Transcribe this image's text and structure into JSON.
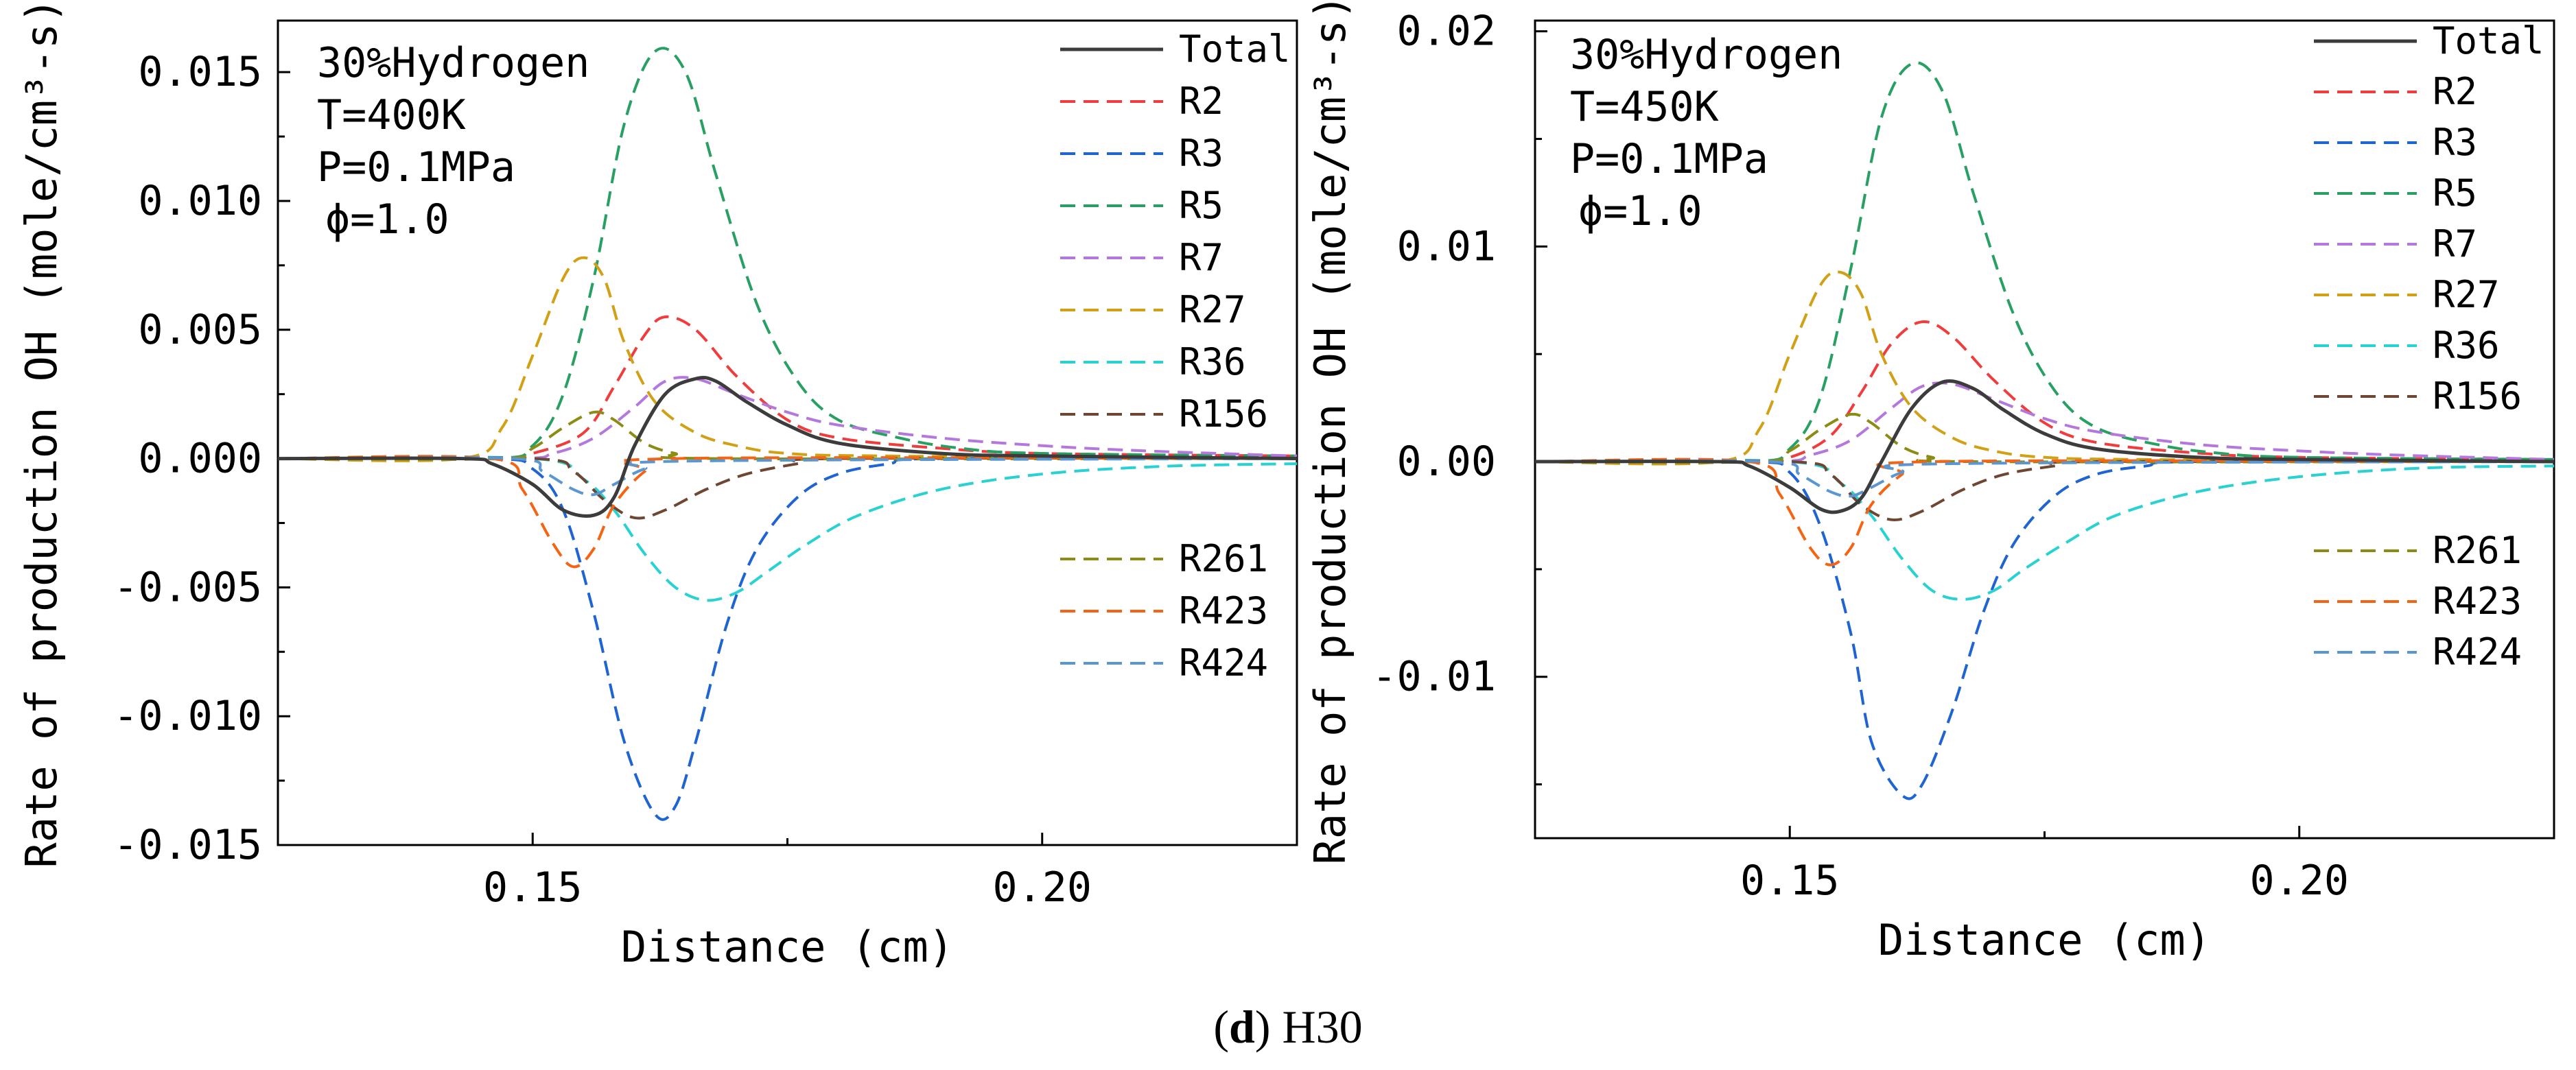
{
  "caption": {
    "panel": "d",
    "text": "H30"
  },
  "colors": {
    "Total": "#3c3c3c",
    "R2": "#f03c3c",
    "R3": "#1e64d2",
    "R5": "#28a064",
    "R7": "#b478dc",
    "R27": "#d2a014",
    "R36": "#28d2d2",
    "R156": "#6e4632",
    "R261": "#8c8c14",
    "R423": "#f56414",
    "R424": "#5a96d2"
  },
  "chart_data": [
    {
      "type": "line",
      "title": "",
      "xlabel": "Distance (cm)",
      "ylabel": "Rate of production OH (mole/cm³-s)",
      "xlim": [
        0.125,
        0.225
      ],
      "ylim": [
        -0.015,
        0.017
      ],
      "xticks": [
        0.15,
        0.2
      ],
      "xtick_labels": [
        "0.15",
        "0.20"
      ],
      "yticks": [
        0.015,
        0.01,
        0.005,
        0.0,
        -0.005,
        -0.01,
        -0.015
      ],
      "ytick_labels": [
        "0.015",
        "0.010",
        "0.005",
        "0.000",
        "-0.005",
        "-0.010",
        "-0.015"
      ],
      "annotations": [
        "30%Hydrogen",
        "T=400K",
        "P=0.1MPa",
        "ϕ=1.0"
      ],
      "legend_top": [
        "Total",
        "R2",
        "R3",
        "R5",
        "R7",
        "R27",
        "R36",
        "R156"
      ],
      "legend_bottom": [
        "R261",
        "R423",
        "R424"
      ],
      "series": [
        {
          "name": "Total",
          "style": "solid",
          "x": [
            0.125,
            0.143,
            0.146,
            0.15,
            0.153,
            0.156,
            0.158,
            0.16,
            0.163,
            0.166,
            0.168,
            0.171,
            0.175,
            0.18,
            0.19,
            0.2,
            0.225
          ],
          "y": [
            0,
            0,
            -0.0002,
            -0.001,
            -0.002,
            -0.0022,
            -0.0015,
            0.0005,
            0.0025,
            0.0031,
            0.003,
            0.0022,
            0.0013,
            0.0006,
            0.0002,
            0.0001,
            0
          ]
        },
        {
          "name": "R2",
          "style": "dashed",
          "x": [
            0.125,
            0.146,
            0.15,
            0.155,
            0.158,
            0.161,
            0.163,
            0.166,
            0.17,
            0.175,
            0.18,
            0.19,
            0.2,
            0.225
          ],
          "y": [
            0,
            0,
            0.0002,
            0.001,
            0.0028,
            0.0048,
            0.0055,
            0.005,
            0.0032,
            0.0015,
            0.0008,
            0.0004,
            0.0002,
            0.0001
          ]
        },
        {
          "name": "R3",
          "style": "dashed",
          "x": [
            0.125,
            0.146,
            0.15,
            0.153,
            0.156,
            0.159,
            0.162,
            0.164,
            0.166,
            0.169,
            0.172,
            0.176,
            0.18,
            0.185,
            0.19,
            0.225
          ],
          "y": [
            0,
            0,
            -0.0004,
            -0.002,
            -0.006,
            -0.011,
            -0.0138,
            -0.0135,
            -0.011,
            -0.0065,
            -0.0035,
            -0.0015,
            -0.0006,
            -0.0002,
            0,
            0
          ]
        },
        {
          "name": "R5",
          "style": "dashed",
          "x": [
            0.125,
            0.146,
            0.15,
            0.153,
            0.156,
            0.159,
            0.162,
            0.165,
            0.168,
            0.172,
            0.176,
            0.18,
            0.186,
            0.192,
            0.2,
            0.225
          ],
          "y": [
            0,
            0,
            0.0005,
            0.0025,
            0.007,
            0.013,
            0.0158,
            0.015,
            0.011,
            0.006,
            0.003,
            0.0015,
            0.0008,
            0.0004,
            0.0002,
            0.0001
          ]
        },
        {
          "name": "R7",
          "style": "dashed",
          "x": [
            0.125,
            0.148,
            0.152,
            0.156,
            0.16,
            0.163,
            0.166,
            0.17,
            0.175,
            0.18,
            0.19,
            0.2,
            0.21,
            0.225
          ],
          "y": [
            0,
            0,
            0.0002,
            0.0008,
            0.002,
            0.003,
            0.0031,
            0.0025,
            0.0018,
            0.0013,
            0.0008,
            0.0005,
            0.0003,
            0.0001
          ]
        },
        {
          "name": "R27",
          "style": "dashed",
          "x": [
            0.125,
            0.143,
            0.147,
            0.15,
            0.153,
            0.155,
            0.157,
            0.159,
            0.162,
            0.166,
            0.17,
            0.175,
            0.185,
            0.225
          ],
          "y": [
            0,
            0,
            0.0012,
            0.004,
            0.007,
            0.0078,
            0.007,
            0.0045,
            0.0022,
            0.001,
            0.0005,
            0.0002,
            0.0001,
            0
          ]
        },
        {
          "name": "R36",
          "style": "dashed",
          "x": [
            0.125,
            0.15,
            0.155,
            0.158,
            0.161,
            0.164,
            0.167,
            0.17,
            0.173,
            0.177,
            0.182,
            0.19,
            0.2,
            0.212,
            0.225
          ],
          "y": [
            0,
            0,
            -0.0008,
            -0.002,
            -0.0037,
            -0.005,
            -0.0055,
            -0.0052,
            -0.0044,
            -0.0033,
            -0.0022,
            -0.0012,
            -0.0006,
            -0.0003,
            -0.0002
          ]
        },
        {
          "name": "R156",
          "style": "dashed",
          "x": [
            0.125,
            0.15,
            0.154,
            0.157,
            0.16,
            0.163,
            0.167,
            0.171,
            0.176,
            0.18,
            0.225
          ],
          "y": [
            0,
            0,
            -0.0005,
            -0.0016,
            -0.0023,
            -0.002,
            -0.0012,
            -0.0006,
            -0.0002,
            0,
            0
          ]
        },
        {
          "name": "R261",
          "style": "dashed",
          "x": [
            0.125,
            0.147,
            0.15,
            0.153,
            0.156,
            0.158,
            0.161,
            0.164,
            0.168,
            0.225
          ],
          "y": [
            0,
            0,
            0.0004,
            0.0012,
            0.0018,
            0.0015,
            0.0006,
            0.0002,
            0,
            0
          ]
        },
        {
          "name": "R423",
          "style": "dashed",
          "x": [
            0.125,
            0.146,
            0.149,
            0.152,
            0.154,
            0.156,
            0.158,
            0.161,
            0.164,
            0.225
          ],
          "y": [
            0,
            0,
            -0.0012,
            -0.0033,
            -0.0042,
            -0.0035,
            -0.0018,
            -0.0005,
            0,
            0
          ]
        },
        {
          "name": "R424",
          "style": "dashed",
          "x": [
            0.125,
            0.148,
            0.151,
            0.154,
            0.156,
            0.158,
            0.161,
            0.165,
            0.225
          ],
          "y": [
            0,
            0,
            -0.0005,
            -0.0012,
            -0.0014,
            -0.001,
            -0.0004,
            -0.0001,
            0
          ]
        }
      ]
    },
    {
      "type": "line",
      "title": "",
      "xlabel": "Distance (cm)",
      "ylabel": "Rate of production OH (mole/cm³-s)",
      "xlim": [
        0.125,
        0.225
      ],
      "ylim": [
        -0.0175,
        0.0205
      ],
      "xticks": [
        0.15,
        0.2
      ],
      "xtick_labels": [
        "0.15",
        "0.20"
      ],
      "yticks": [
        0.02,
        0.01,
        0.0,
        -0.01
      ],
      "ytick_labels": [
        "0.02",
        "0.01",
        "0.00",
        "-0.01"
      ],
      "annotations": [
        "30%Hydrogen",
        "T=450K",
        "P=0.1MPa",
        "ϕ=1.0"
      ],
      "legend_top": [
        "Total",
        "R2",
        "R3",
        "R5",
        "R7",
        "R27",
        "R36",
        "R156"
      ],
      "legend_bottom": [
        "R261",
        "R423",
        "R424"
      ],
      "series": [
        {
          "name": "Total",
          "style": "solid",
          "x": [
            0.125,
            0.143,
            0.146,
            0.15,
            0.153,
            0.155,
            0.157,
            0.159,
            0.162,
            0.165,
            0.168,
            0.171,
            0.175,
            0.18,
            0.19,
            0.2,
            0.225
          ],
          "y": [
            0,
            0,
            -0.0002,
            -0.0012,
            -0.0022,
            -0.0023,
            -0.0017,
            0.0,
            0.0025,
            0.0037,
            0.0034,
            0.0024,
            0.0013,
            0.0006,
            0.0002,
            0.0001,
            0
          ]
        },
        {
          "name": "R2",
          "style": "dashed",
          "x": [
            0.125,
            0.146,
            0.15,
            0.154,
            0.157,
            0.16,
            0.163,
            0.166,
            0.17,
            0.175,
            0.18,
            0.19,
            0.2,
            0.225
          ],
          "y": [
            0,
            0,
            0.0002,
            0.0012,
            0.0032,
            0.0055,
            0.0065,
            0.0058,
            0.0038,
            0.0018,
            0.0009,
            0.0004,
            0.0002,
            0.0001
          ]
        },
        {
          "name": "R3",
          "style": "dashed",
          "x": [
            0.125,
            0.146,
            0.15,
            0.153,
            0.156,
            0.158,
            0.161,
            0.163,
            0.166,
            0.169,
            0.172,
            0.176,
            0.18,
            0.185,
            0.19,
            0.225
          ],
          "y": [
            0,
            0,
            -0.0005,
            -0.003,
            -0.008,
            -0.013,
            -0.0155,
            -0.015,
            -0.0115,
            -0.007,
            -0.0038,
            -0.0016,
            -0.0006,
            -0.0002,
            0,
            0
          ]
        },
        {
          "name": "R5",
          "style": "dashed",
          "x": [
            0.125,
            0.146,
            0.15,
            0.153,
            0.156,
            0.159,
            0.162,
            0.165,
            0.168,
            0.172,
            0.176,
            0.18,
            0.186,
            0.192,
            0.2,
            0.225
          ],
          "y": [
            0,
            0,
            0.0006,
            0.003,
            0.009,
            0.016,
            0.0185,
            0.0172,
            0.0125,
            0.0068,
            0.0033,
            0.0016,
            0.0008,
            0.0004,
            0.0002,
            0.0001
          ]
        },
        {
          "name": "R7",
          "style": "dashed",
          "x": [
            0.125,
            0.148,
            0.152,
            0.156,
            0.16,
            0.163,
            0.166,
            0.17,
            0.175,
            0.18,
            0.19,
            0.2,
            0.21,
            0.225
          ],
          "y": [
            0,
            0,
            0.0003,
            0.001,
            0.0025,
            0.0035,
            0.0036,
            0.0029,
            0.002,
            0.0014,
            0.0008,
            0.0005,
            0.0003,
            0.0001
          ]
        },
        {
          "name": "R27",
          "style": "dashed",
          "x": [
            0.125,
            0.143,
            0.147,
            0.15,
            0.153,
            0.155,
            0.157,
            0.159,
            0.162,
            0.166,
            0.17,
            0.175,
            0.185,
            0.225
          ],
          "y": [
            0,
            0,
            0.0015,
            0.005,
            0.0082,
            0.0088,
            0.0078,
            0.005,
            0.0025,
            0.0011,
            0.0005,
            0.0002,
            0.0001,
            0
          ]
        },
        {
          "name": "R36",
          "style": "dashed",
          "x": [
            0.125,
            0.15,
            0.155,
            0.158,
            0.161,
            0.164,
            0.167,
            0.17,
            0.173,
            0.177,
            0.182,
            0.19,
            0.2,
            0.212,
            0.225
          ],
          "y": [
            0,
            0,
            -0.001,
            -0.0025,
            -0.0045,
            -0.006,
            -0.0064,
            -0.006,
            -0.005,
            -0.0038,
            -0.0025,
            -0.0014,
            -0.0007,
            -0.0003,
            -0.0002
          ]
        },
        {
          "name": "R156",
          "style": "dashed",
          "x": [
            0.125,
            0.15,
            0.154,
            0.157,
            0.16,
            0.163,
            0.167,
            0.171,
            0.176,
            0.18,
            0.225
          ],
          "y": [
            0,
            0,
            -0.0006,
            -0.002,
            -0.0027,
            -0.0023,
            -0.0013,
            -0.0006,
            -0.0002,
            0,
            0
          ]
        },
        {
          "name": "R261",
          "style": "dashed",
          "x": [
            0.125,
            0.147,
            0.15,
            0.153,
            0.156,
            0.158,
            0.161,
            0.164,
            0.168,
            0.225
          ],
          "y": [
            0,
            0,
            0.0005,
            0.0015,
            0.0022,
            0.0018,
            0.0007,
            0.0002,
            0,
            0
          ]
        },
        {
          "name": "R423",
          "style": "dashed",
          "x": [
            0.125,
            0.146,
            0.149,
            0.152,
            0.154,
            0.156,
            0.158,
            0.161,
            0.164,
            0.225
          ],
          "y": [
            0,
            0,
            -0.0015,
            -0.004,
            -0.0048,
            -0.004,
            -0.002,
            -0.0006,
            0,
            0
          ]
        },
        {
          "name": "R424",
          "style": "dashed",
          "x": [
            0.125,
            0.148,
            0.151,
            0.154,
            0.156,
            0.158,
            0.161,
            0.165,
            0.225
          ],
          "y": [
            0,
            0,
            -0.0006,
            -0.0014,
            -0.0016,
            -0.0012,
            -0.0005,
            -0.0001,
            0
          ]
        }
      ]
    }
  ]
}
